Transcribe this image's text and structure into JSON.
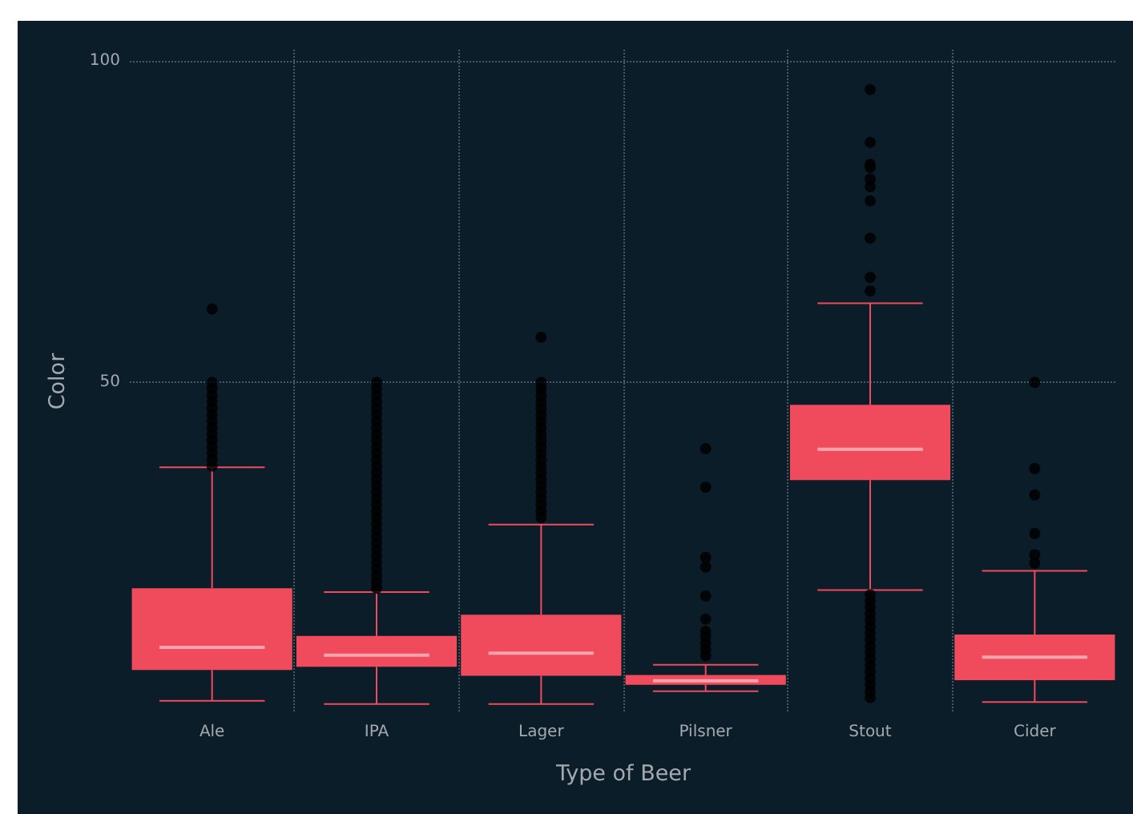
{
  "chart_data": {
    "type": "box",
    "xlabel": "Type of Beer",
    "ylabel": "Color",
    "categories": [
      "Ale",
      "IPA",
      "Lager",
      "Pilsner",
      "Stout",
      "Cider"
    ],
    "color": "#f04b5d",
    "boxes": [
      {
        "low": 0.5,
        "q1": 5.3,
        "median": 8.8,
        "q3": 18.0,
        "high": 36.8,
        "outliers": [
          37,
          38,
          39,
          40,
          41,
          42,
          43,
          44,
          45,
          46,
          47,
          48,
          49,
          50,
          61.4
        ]
      },
      {
        "low": 0,
        "q1": 5.8,
        "median": 7.6,
        "q3": 10.6,
        "high": 17.4,
        "outliers": [
          18,
          19,
          20,
          21,
          22,
          23,
          24,
          25,
          26,
          27,
          28,
          29,
          30,
          31,
          32,
          33,
          34,
          35,
          36,
          37,
          38,
          39,
          40,
          41,
          42,
          43,
          44,
          45,
          46,
          47,
          48,
          49,
          50
        ]
      },
      {
        "low": 0,
        "q1": 4.4,
        "median": 7.9,
        "q3": 13.9,
        "high": 27.9,
        "outliers": [
          29,
          30,
          31,
          32,
          33,
          34,
          35,
          36,
          37,
          38,
          39,
          40,
          41,
          42,
          43,
          44,
          45,
          46,
          47,
          48,
          49,
          50,
          57.0
        ]
      },
      {
        "low": 2.0,
        "q1": 3.0,
        "median": 3.6,
        "q3": 4.5,
        "high": 6.1,
        "outliers": [
          7.5,
          8.5,
          9.5,
          10.5,
          11.3,
          13.2,
          16.8,
          21.3,
          22.8,
          33.7,
          39.7
        ]
      },
      {
        "low": 17.7,
        "q1": 34.8,
        "median": 39.6,
        "q3": 46.5,
        "high": 62.3,
        "outliers": [
          1,
          2,
          3,
          4,
          5,
          6,
          7,
          8,
          9,
          10,
          11,
          12,
          13,
          14,
          15,
          16,
          17,
          64.2,
          66.3,
          72.4,
          78.2,
          80.4,
          81.6,
          83.4,
          83.9,
          87.3,
          95.5
        ]
      },
      {
        "low": 0.3,
        "q1": 3.7,
        "median": 7.3,
        "q3": 10.8,
        "high": 20.7,
        "outliers": [
          21.9,
          23.2,
          26.5,
          32.5,
          36.6,
          50
        ]
      }
    ],
    "ylim": [
      -1.4,
      101.7
    ],
    "yticks": [
      50,
      100
    ],
    "grid": true
  }
}
